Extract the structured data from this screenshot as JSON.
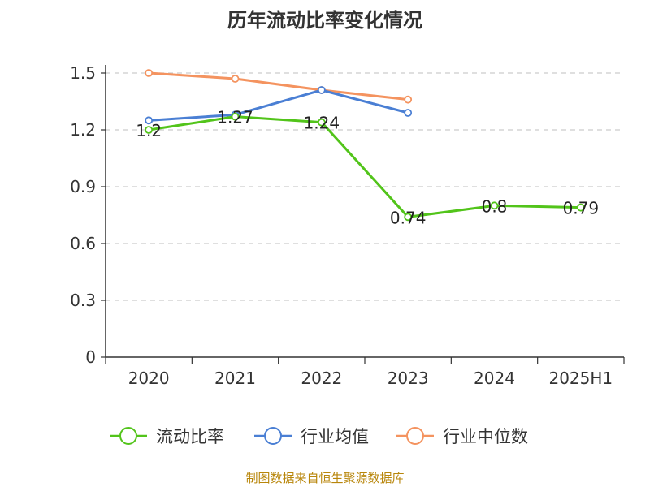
{
  "chart_data": {
    "type": "line",
    "title": "历年流动比率变化情况",
    "categories": [
      "2020",
      "2021",
      "2022",
      "2023",
      "2024",
      "2025H1"
    ],
    "ylim": [
      0,
      1.5
    ],
    "yticks": [
      "0",
      "0.3",
      "0.6",
      "0.9",
      "1.2",
      "1.5"
    ],
    "grid": true,
    "legend_position": "bottom",
    "series": [
      {
        "name": "流动比率",
        "color": "#52c41a",
        "values": [
          1.2,
          1.27,
          1.24,
          0.74,
          0.8,
          0.79
        ],
        "labels": [
          "1.2",
          "1.27",
          "1.24",
          "0.74",
          "0.8",
          "0.79"
        ]
      },
      {
        "name": "行业均值",
        "color": "#4a7fd4",
        "values": [
          1.25,
          1.28,
          1.41,
          1.29,
          null,
          null
        ]
      },
      {
        "name": "行业中位数",
        "color": "#f4935f",
        "values": [
          1.5,
          1.47,
          1.41,
          1.36,
          null,
          null
        ]
      }
    ],
    "source": "制图数据来自恒生聚源数据库"
  }
}
